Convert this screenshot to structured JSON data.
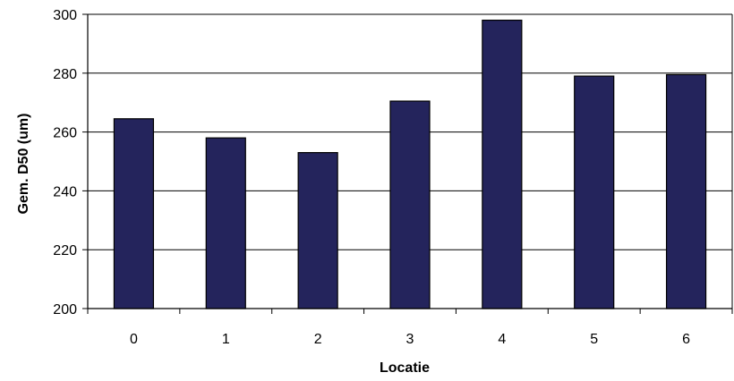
{
  "chart_data": {
    "type": "bar",
    "categories": [
      "0",
      "1",
      "2",
      "3",
      "4",
      "5",
      "6"
    ],
    "values": [
      264.5,
      258,
      253,
      270.5,
      298,
      279,
      279.5
    ],
    "xlabel": "Locatie",
    "ylabel": "Gem. D50 (um)",
    "ylim": [
      200,
      300
    ],
    "yticks": [
      200,
      220,
      240,
      260,
      280,
      300
    ],
    "grid": true,
    "legend": "none",
    "colors": {
      "bar": "#24245c",
      "bar_edge": "#000000",
      "grid": "#000000",
      "plot_background": "#ffffff"
    }
  }
}
